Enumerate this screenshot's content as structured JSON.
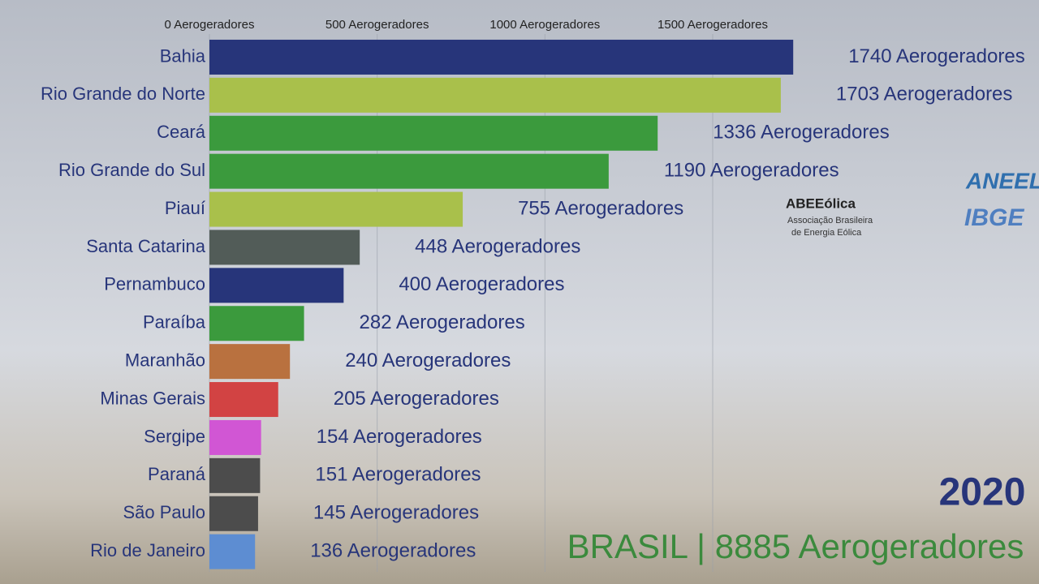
{
  "chart_data": {
    "type": "barh",
    "categories": [
      "Bahia",
      "Rio Grande do Norte",
      "Ceará",
      "Rio Grande do Sul",
      "Piauí",
      "Santa Catarina",
      "Pernambuco",
      "Paraíba",
      "Maranhão",
      "Minas Gerais",
      "Sergipe",
      "Paraná",
      "São Paulo",
      "Rio de Janeiro"
    ],
    "values": [
      1740,
      1703,
      1336,
      1190,
      755,
      448,
      400,
      282,
      240,
      205,
      154,
      151,
      145,
      136
    ],
    "value_labels": [
      "1740 Aerogeradores",
      "1703 Aerogeradores",
      "1336 Aerogeradores",
      "1190 Aerogeradores",
      "755 Aerogeradores",
      "448 Aerogeradores",
      "400 Aerogeradores",
      "282 Aerogeradores",
      "240 Aerogeradores",
      "205 Aerogeradores",
      "154 Aerogeradores",
      "151 Aerogeradores",
      "145 Aerogeradores",
      "136 Aerogeradores"
    ],
    "colors": [
      "#27357a",
      "#a9c04b",
      "#3b9a3d",
      "#3b9a3d",
      "#a9c04b",
      "#525c58",
      "#27357a",
      "#3b9a3d",
      "#b9713f",
      "#d24343",
      "#d156d4",
      "#4c4c4c",
      "#4c4c4c",
      "#5d8dd2"
    ],
    "xlim": [
      0,
      2400
    ],
    "xticks": [
      {
        "value": 0,
        "label": "0 Aerogeradores"
      },
      {
        "value": 500,
        "label": "500 Aerogeradores"
      },
      {
        "value": 1000,
        "label": "1000 Aerogeradores"
      },
      {
        "value": 1500,
        "label": "1500 Aerogeradores"
      }
    ],
    "grid": true,
    "year": "2020",
    "subtitle": "BRASIL | 8885 Aerogeradores",
    "annotations": [
      "ABEEólica",
      "Associação Brasileira",
      "de Energia Eólica",
      "ANEEL",
      "IBGE"
    ]
  }
}
